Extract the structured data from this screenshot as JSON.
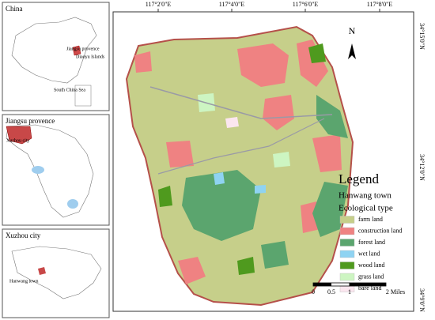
{
  "inset_maps": [
    {
      "title": "China",
      "labels": [
        "Jiangsu provence",
        "Diaoyu Islands",
        "South China Sea"
      ]
    },
    {
      "title": "Jiangsu provence",
      "labels": [
        "Xuzhou city"
      ]
    },
    {
      "title": "Xuzhou city",
      "labels": [
        "Hanwang town"
      ]
    }
  ],
  "main_map": {
    "lon_ticks": [
      "117°2'0\"E",
      "117°4'0\"E",
      "117°6'0\"E",
      "117°8'0\"E"
    ],
    "lat_ticks": [
      "34°15'0\"N",
      "34°12'0\"N",
      "34°9'0\"N"
    ],
    "north": "N"
  },
  "legend": {
    "title": "Legend",
    "subtitle": "Hanwang town",
    "heading": "Ecological type",
    "items": [
      {
        "label": "farm land",
        "color": "#c6cf8a"
      },
      {
        "label": "construction land",
        "color": "#ef8282"
      },
      {
        "label": "forest land",
        "color": "#5ba56e"
      },
      {
        "label": "wet land",
        "color": "#8fd3f2"
      },
      {
        "label": "wood land",
        "color": "#4f9a1e"
      },
      {
        "label": "grass land",
        "color": "#cdf5c2"
      },
      {
        "label": "bare land",
        "color": "#fbe6ef"
      }
    ]
  },
  "scale_bar": {
    "labels": [
      "0",
      "0.5",
      "1",
      "2 Miles"
    ]
  }
}
